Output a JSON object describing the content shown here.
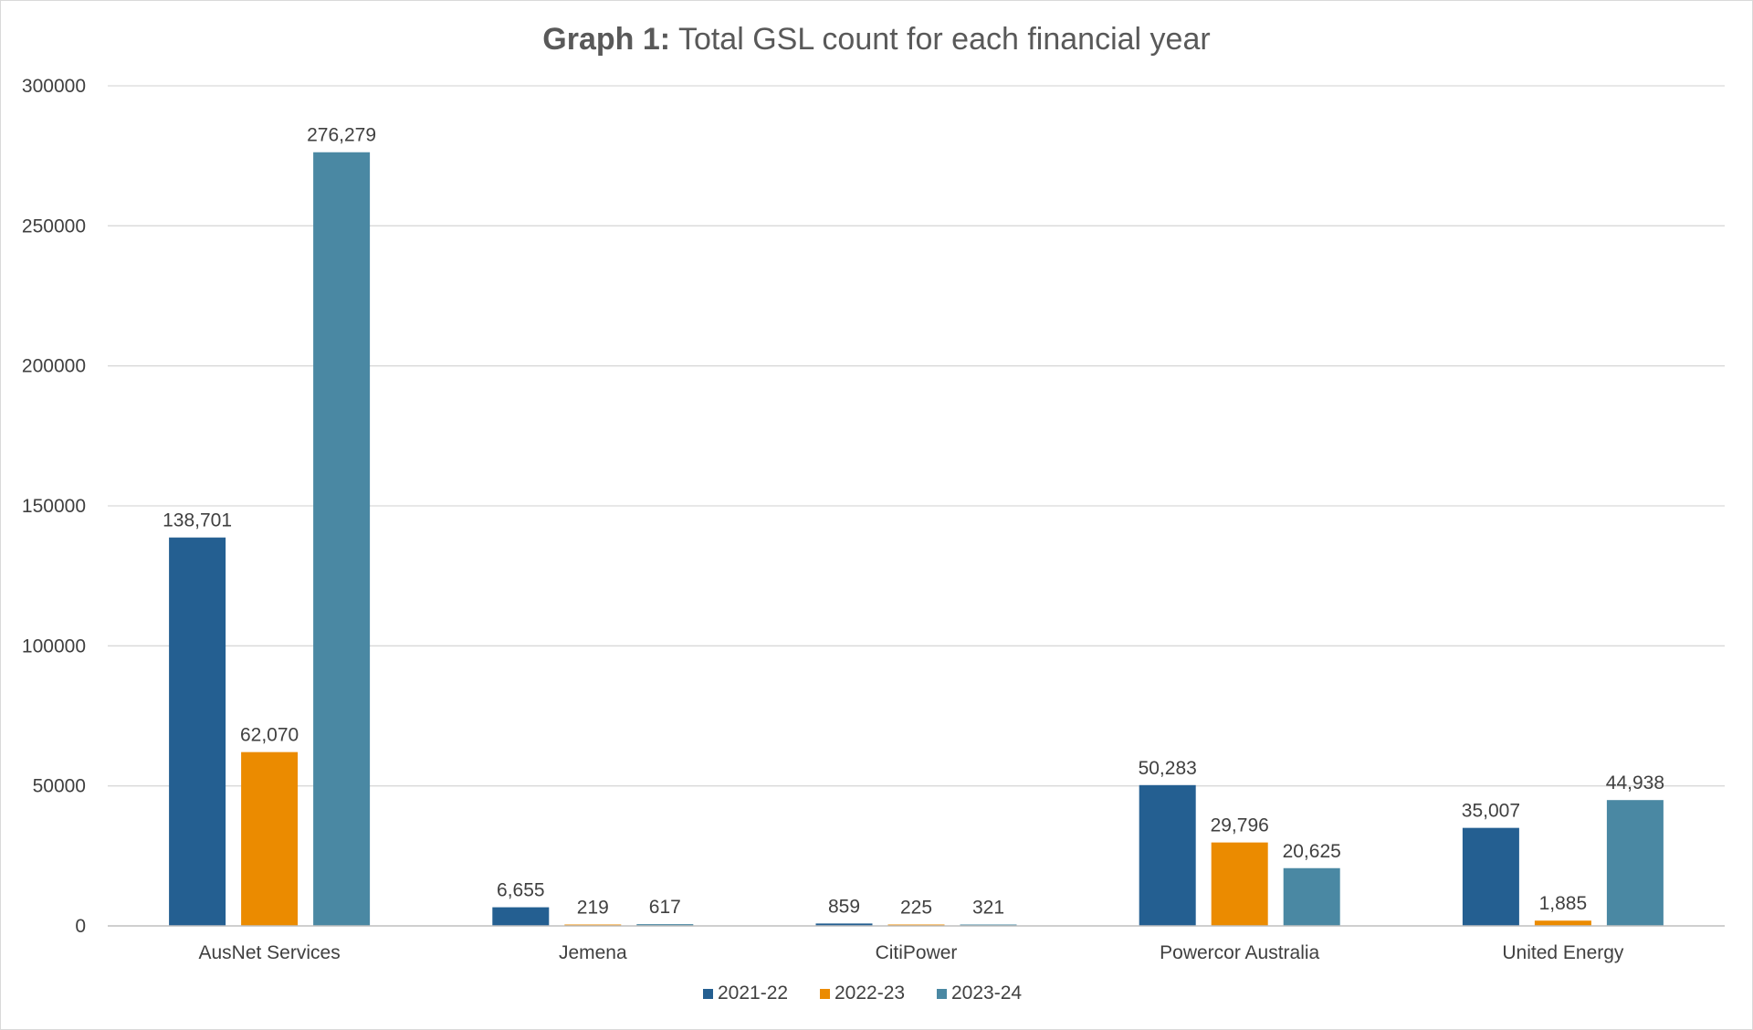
{
  "chart_data": {
    "type": "bar",
    "title_bold": "Graph 1:",
    "title_rest": " Total GSL count for each financial year",
    "categories": [
      "AusNet Services",
      "Jemena",
      "CitiPower",
      "Powercor Australia",
      "United Energy"
    ],
    "series": [
      {
        "name": "2021-22",
        "color": "#245f91",
        "values": [
          138701,
          6655,
          859,
          50283,
          35007
        ],
        "labels": [
          "138,701",
          "6,655",
          "859",
          "50,283",
          "35,007"
        ]
      },
      {
        "name": "2022-23",
        "color": "#eb8b00",
        "values": [
          62070,
          219,
          225,
          29796,
          1885
        ],
        "labels": [
          "62,070",
          "219",
          "225",
          "29,796",
          "1,885"
        ]
      },
      {
        "name": "2023-24",
        "color": "#4a88a3",
        "values": [
          276279,
          617,
          321,
          20625,
          44938
        ],
        "labels": [
          "276,279",
          "617",
          "321",
          "20,625",
          "44,938"
        ]
      }
    ],
    "yticks": [
      "0",
      "50000",
      "100000",
      "150000",
      "200000",
      "250000",
      "300000"
    ],
    "ylim": [
      0,
      300000
    ],
    "grid": true,
    "legend_position": "bottom"
  }
}
